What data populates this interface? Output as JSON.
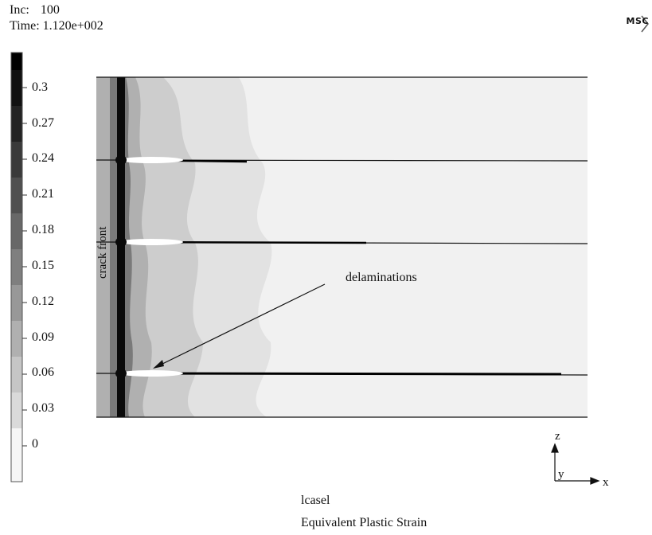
{
  "header": {
    "inc_label": "Inc:",
    "inc_value": "100",
    "time_label": "Time:",
    "time_value": "1.120e+002"
  },
  "logo": {
    "text": "MSC"
  },
  "legend": {
    "labels": [
      "0.3",
      "0.27",
      "0.24",
      "0.21",
      "0.18",
      "0.15",
      "0.12",
      "0.09",
      "0.06",
      "0.03",
      "0"
    ],
    "fill_colors": [
      "#111111",
      "#232323",
      "#3a3a3a",
      "#505050",
      "#686868",
      "#7f7f7f",
      "#989898",
      "#b0b0b0",
      "#c6c6c6",
      "#dadada",
      "#f3f3f3"
    ]
  },
  "annotations": {
    "crack_front": "crack front",
    "delaminations": "delaminations"
  },
  "axes": {
    "z": "z",
    "y": "y",
    "x": "x"
  },
  "footer": {
    "load_case": "lcasel",
    "quantity": "Equivalent Plastic Strain"
  }
}
